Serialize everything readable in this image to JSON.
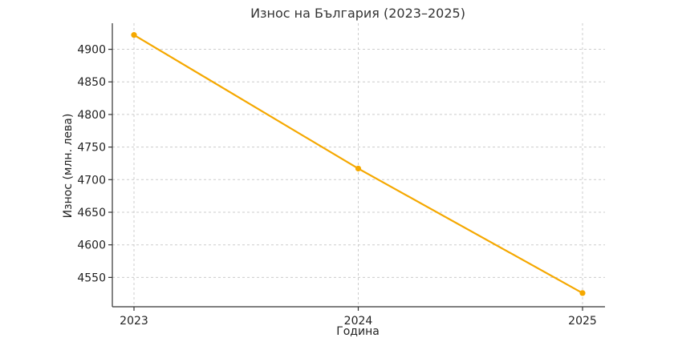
{
  "chart_data": {
    "type": "line",
    "title": "Износ на България (2023–2025)",
    "xlabel": "Година",
    "ylabel": "Износ (млн. лева)",
    "categories": [
      "2023",
      "2024",
      "2025"
    ],
    "series": [
      {
        "values": [
          4922,
          4717,
          4526
        ],
        "color": "#f5a800"
      }
    ],
    "ylim": [
      4505,
      4940
    ],
    "yticks": [
      4550,
      4600,
      4650,
      4700,
      4750,
      4800,
      4850,
      4900
    ],
    "grid": true
  }
}
